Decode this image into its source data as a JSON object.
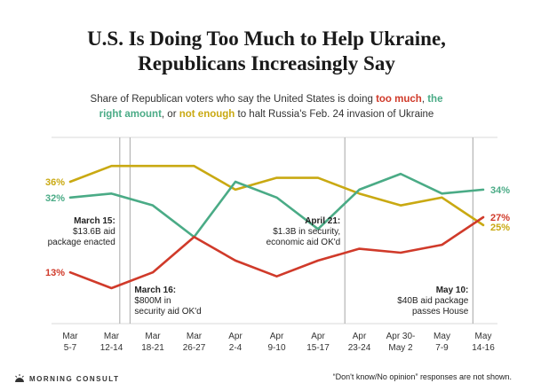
{
  "title_line1": "U.S. Is Doing Too Much to Help Ukraine,",
  "title_line2": "Republicans Increasingly Say",
  "subtitle": {
    "p1": "Share of Republican voters who say the United States is doing ",
    "too_much": "too much",
    "comma1": ", ",
    "the": "the",
    "right_amount": "right amount",
    "p2": ", or ",
    "not_enough": "not enough",
    "p3": " to halt Russia's Feb. 24 invasion of Ukraine"
  },
  "colors": {
    "too_much": "#d03a2a",
    "right_amount": "#4aab86",
    "not_enough": "#c9a912",
    "event_line": "#b5b5b5",
    "grid": "#d9d9d9"
  },
  "chart_data": {
    "type": "line",
    "categories": [
      [
        "Mar",
        "5-7"
      ],
      [
        "Mar",
        "12-14"
      ],
      [
        "Mar",
        "18-21"
      ],
      [
        "Mar",
        "26-27"
      ],
      [
        "Apr",
        "2-4"
      ],
      [
        "Apr",
        "9-10"
      ],
      [
        "Apr",
        "15-17"
      ],
      [
        "Apr",
        "23-24"
      ],
      [
        "Apr 30-",
        "May 2"
      ],
      [
        "May",
        "7-9"
      ],
      [
        "May",
        "14-16"
      ]
    ],
    "series": [
      {
        "key": "not_enough",
        "values": [
          36,
          40,
          40,
          40,
          34,
          37,
          37,
          33,
          30,
          32,
          25
        ]
      },
      {
        "key": "right_amount",
        "values": [
          32,
          33,
          30,
          22,
          36,
          32,
          24,
          34,
          38,
          33,
          34
        ]
      },
      {
        "key": "too_much",
        "values": [
          13,
          9,
          13,
          22,
          16,
          12,
          16,
          19,
          18,
          20,
          27
        ]
      }
    ],
    "end_labels": {
      "not_enough_start": "36%",
      "right_amount_start": "32%",
      "too_much_start": "13%",
      "right_amount_end": "34%",
      "too_much_end": "27%",
      "not_enough_end": "25%"
    },
    "events": [
      {
        "after_index": 1.2,
        "title": "March 15:",
        "lines": [
          "$13.6B aid",
          "package enacted"
        ],
        "align": "right"
      },
      {
        "after_index": 1.45,
        "title": "March 16:",
        "lines": [
          "$800M in",
          "security aid OK'd"
        ],
        "align": "left"
      },
      {
        "after_index": 6.65,
        "title": "April 21:",
        "lines": [
          "$1.3B in security,",
          "economic aid OK'd"
        ],
        "align": "right"
      },
      {
        "after_index": 9.75,
        "title": "May 10:",
        "lines": [
          "$40B aid package",
          "passes House"
        ],
        "align": "right"
      }
    ],
    "ylim": [
      0,
      45
    ]
  },
  "footer": {
    "logo_text": "MORNING CONSULT",
    "note": "“Don't know/No opinion” responses are not shown."
  }
}
